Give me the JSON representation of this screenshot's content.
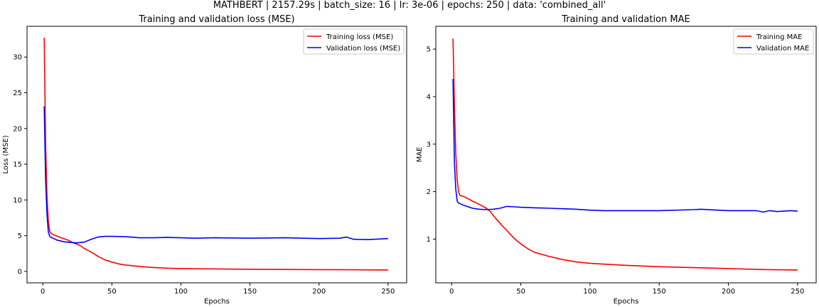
{
  "suptitle": "MATHBERT | 2157.29s | batch_size: 16 | lr: 3e-06 | epochs: 250 | data: 'combined_all'",
  "colors": {
    "training": "#ff0000",
    "validation": "#0000ff"
  },
  "chart_data": [
    {
      "type": "line",
      "title": "Training and validation loss (MSE)",
      "xlabel": "Epochs",
      "ylabel": "Loss (MSE)",
      "xlim": [
        -11.45,
        263.45
      ],
      "ylim": [
        -1.6,
        34.3
      ],
      "xticks": [
        0,
        50,
        100,
        150,
        200,
        250
      ],
      "yticks": [
        0,
        5,
        10,
        15,
        20,
        25,
        30
      ],
      "legend_position": "top-right",
      "grid": false,
      "series": [
        {
          "name": "Training loss (MSE)",
          "color": "#ff0000",
          "x": [
            1,
            2,
            3,
            4,
            5,
            6,
            8,
            10,
            12,
            15,
            18,
            20,
            22,
            25,
            28,
            30,
            33,
            36,
            40,
            45,
            50,
            55,
            60,
            70,
            80,
            90,
            100,
            125,
            150,
            175,
            200,
            225,
            250
          ],
          "y": [
            32.7,
            18.0,
            10.5,
            7.0,
            5.6,
            5.3,
            5.1,
            4.95,
            4.8,
            4.6,
            4.4,
            4.2,
            4.0,
            3.8,
            3.5,
            3.2,
            2.9,
            2.6,
            2.1,
            1.6,
            1.3,
            1.05,
            0.9,
            0.7,
            0.55,
            0.45,
            0.4,
            0.35,
            0.3,
            0.27,
            0.25,
            0.23,
            0.2
          ]
        },
        {
          "name": "Validation loss (MSE)",
          "color": "#0000ff",
          "x": [
            1,
            2,
            3,
            4,
            5,
            6,
            8,
            10,
            12,
            15,
            18,
            20,
            25,
            30,
            35,
            40,
            45,
            50,
            60,
            70,
            80,
            90,
            100,
            110,
            125,
            150,
            175,
            200,
            215,
            220,
            225,
            235,
            245,
            250
          ],
          "y": [
            23.1,
            13.0,
            8.0,
            5.5,
            4.9,
            4.75,
            4.6,
            4.4,
            4.3,
            4.15,
            4.1,
            4.05,
            4.0,
            4.1,
            4.5,
            4.8,
            4.9,
            4.9,
            4.85,
            4.7,
            4.7,
            4.75,
            4.7,
            4.65,
            4.7,
            4.65,
            4.7,
            4.6,
            4.65,
            4.8,
            4.5,
            4.45,
            4.55,
            4.6
          ]
        }
      ]
    },
    {
      "type": "line",
      "title": "Training and validation MAE",
      "xlabel": "Epochs",
      "ylabel": "MAE",
      "xlim": [
        -11.45,
        263.45
      ],
      "ylim": [
        0.08,
        5.48
      ],
      "xticks": [
        0,
        50,
        100,
        150,
        200,
        250
      ],
      "yticks": [
        1,
        2,
        3,
        4,
        5
      ],
      "legend_position": "top-right",
      "grid": false,
      "series": [
        {
          "name": "Training MAE",
          "color": "#ff0000",
          "x": [
            1,
            2,
            3,
            4,
            5,
            6,
            8,
            10,
            12,
            15,
            18,
            20,
            22,
            25,
            28,
            30,
            33,
            36,
            40,
            45,
            50,
            55,
            60,
            65,
            70,
            80,
            90,
            100,
            125,
            150,
            175,
            200,
            225,
            250
          ],
          "y": [
            5.22,
            3.8,
            2.8,
            2.25,
            2.0,
            1.92,
            1.9,
            1.88,
            1.85,
            1.8,
            1.76,
            1.73,
            1.7,
            1.65,
            1.58,
            1.5,
            1.4,
            1.3,
            1.18,
            1.02,
            0.9,
            0.8,
            0.72,
            0.68,
            0.64,
            0.57,
            0.52,
            0.49,
            0.45,
            0.42,
            0.4,
            0.38,
            0.36,
            0.35
          ]
        },
        {
          "name": "Validation MAE",
          "color": "#0000ff",
          "x": [
            1,
            2,
            3,
            4,
            5,
            6,
            8,
            10,
            12,
            15,
            20,
            25,
            30,
            35,
            40,
            45,
            50,
            60,
            70,
            80,
            90,
            100,
            110,
            125,
            150,
            175,
            180,
            200,
            220,
            225,
            230,
            235,
            245,
            250
          ],
          "y": [
            4.37,
            2.6,
            2.05,
            1.8,
            1.76,
            1.75,
            1.72,
            1.7,
            1.68,
            1.65,
            1.63,
            1.62,
            1.63,
            1.65,
            1.69,
            1.68,
            1.67,
            1.66,
            1.65,
            1.64,
            1.63,
            1.61,
            1.6,
            1.6,
            1.6,
            1.62,
            1.63,
            1.6,
            1.6,
            1.57,
            1.6,
            1.58,
            1.6,
            1.59
          ]
        }
      ]
    }
  ]
}
